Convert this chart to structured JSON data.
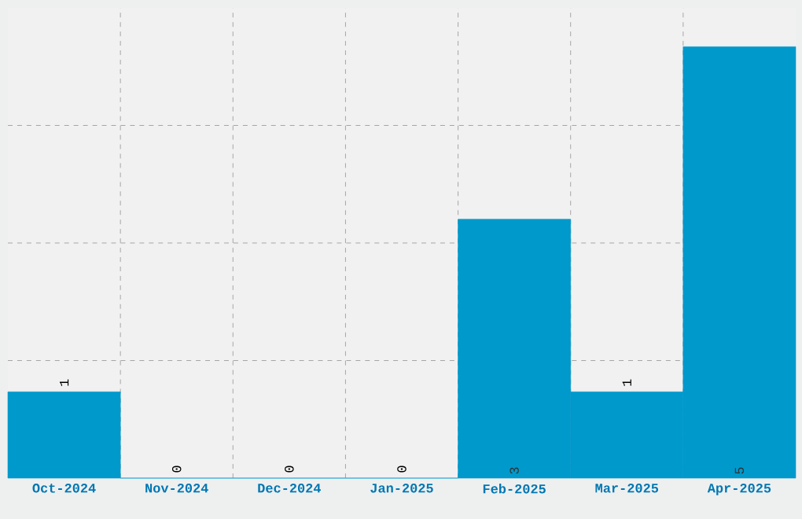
{
  "chart_data": {
    "type": "bar",
    "categories": [
      "Oct-2024",
      "Nov-2024",
      "Dec-2024",
      "Jan-2025",
      "Feb-2025",
      "Mar-2025",
      "Apr-2025"
    ],
    "values": [
      1,
      0,
      0,
      0,
      3,
      1,
      5
    ],
    "value_labels": [
      "1",
      "0",
      "0",
      "0",
      "3",
      "1",
      "5"
    ],
    "color": "#0099cc",
    "ylim": [
      0,
      5.45
    ],
    "yticks": [
      {
        "value": 1.3625,
        "label": null
      },
      {
        "value": 2.725,
        "label": null
      },
      {
        "value": 4.0875,
        "label": null
      }
    ],
    "grid": true
  }
}
